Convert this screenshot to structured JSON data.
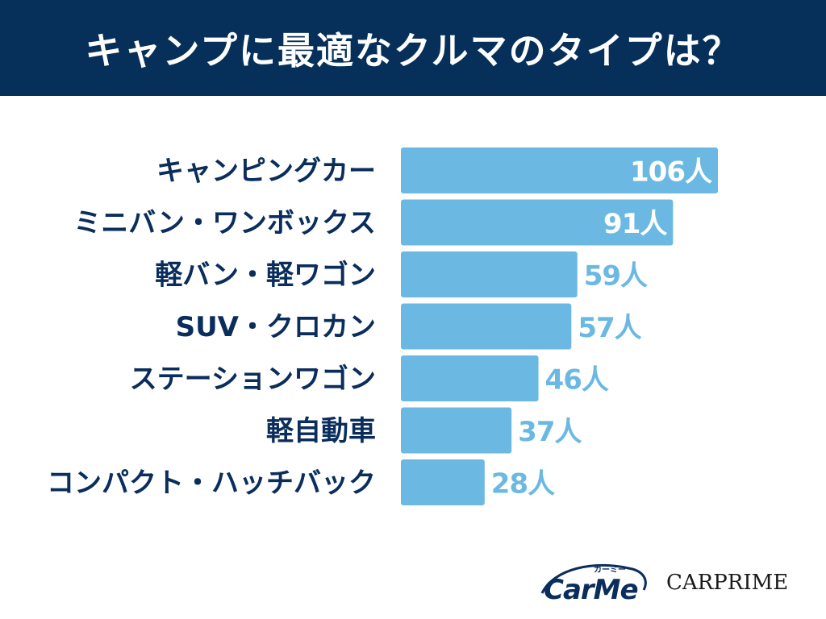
{
  "title": "キャンプに最適なクルマのタイプは？",
  "chart_data": {
    "type": "bar",
    "orientation": "horizontal",
    "categories": [
      "キャンピングカー",
      "ミニバン・ワンボックス",
      "軽バン・軽ワゴン",
      "SUV・クロカン",
      "ステーションワゴン",
      "軽自動車",
      "コンパクト・ハッチバック"
    ],
    "values": [
      106,
      91,
      59,
      57,
      46,
      37,
      28
    ],
    "data_labels": [
      "106人",
      "91人",
      "59人",
      "57人",
      "46人",
      "37人",
      "28人"
    ],
    "xlim": [
      0,
      106
    ],
    "grid": false,
    "bar_color": "#6bb9e3",
    "label_inside_color": "#ffffff",
    "label_outside_color": "#6bb9e3",
    "category_label_color": "#0a2d5c"
  },
  "logos": {
    "carme": "CarMe",
    "carme_kana": "カーミー",
    "carprime": "CARPRIME"
  },
  "colors": {
    "header_bg": "#06305a",
    "header_text": "#ffffff"
  }
}
